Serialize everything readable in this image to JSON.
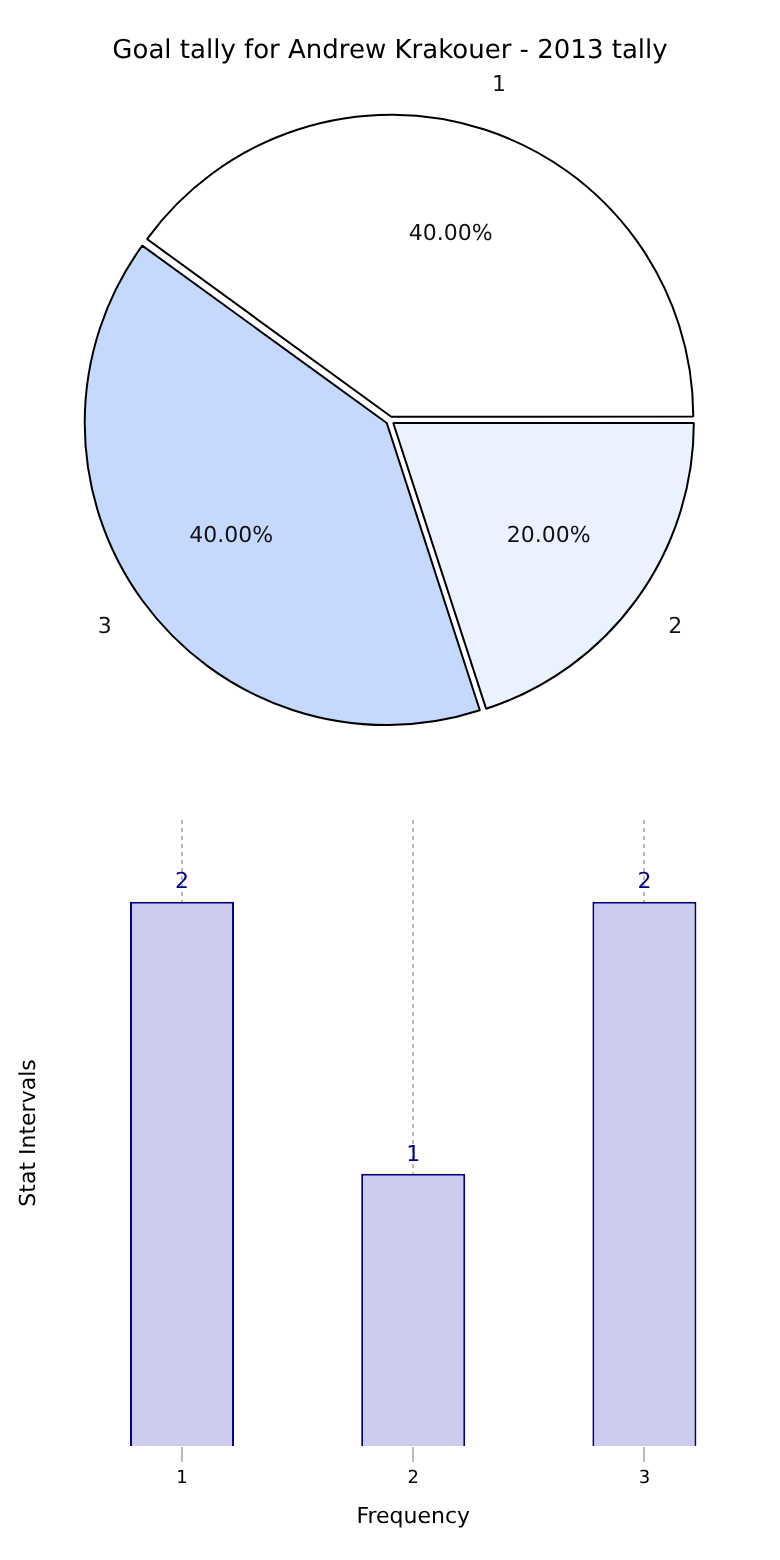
{
  "chart_data": [
    {
      "type": "pie",
      "title": "Goal tally for Andrew Krakouer - 2013 tally",
      "categories": [
        "1",
        "2",
        "3"
      ],
      "values": [
        40,
        20,
        40
      ],
      "colors": [
        "#ffffff",
        "#eaf2ff",
        "#c5d9ff"
      ],
      "value_labels": [
        "40.00%",
        "20.00%",
        "40.00%"
      ]
    },
    {
      "type": "bar",
      "xlabel": "Frequency",
      "ylabel": "Stat Intervals",
      "categories": [
        "1",
        "2",
        "3"
      ],
      "values": [
        2,
        1,
        2
      ],
      "color": "#ccccee",
      "ylim": [
        0,
        2.3
      ],
      "data_labels": true,
      "grid": "x",
      "tick_labels": "x"
    }
  ]
}
